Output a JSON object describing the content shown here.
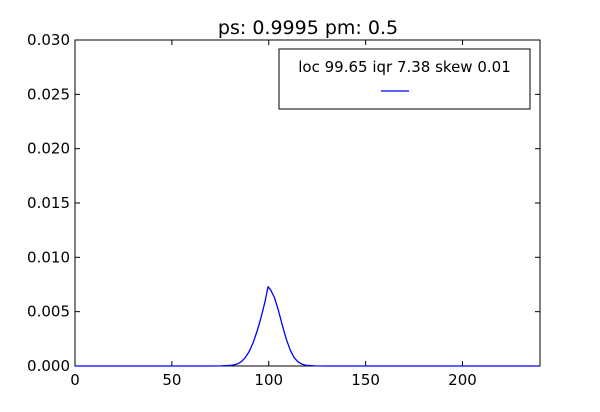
{
  "chart_data": {
    "type": "line",
    "title": "ps: 0.9995 pm: 0.5",
    "xlabel": "",
    "ylabel": "",
    "xlim": [
      0,
      240
    ],
    "ylim": [
      0,
      0.03
    ],
    "x_ticks": [
      0,
      50,
      100,
      150,
      200
    ],
    "x_tick_labels": [
      "0",
      "50",
      "100",
      "150",
      "200"
    ],
    "y_ticks": [
      0,
      0.005,
      0.01,
      0.015,
      0.02,
      0.025,
      0.03
    ],
    "y_tick_labels": [
      "0.000",
      "0.005",
      "0.010",
      "0.015",
      "0.020",
      "0.025",
      "0.030"
    ],
    "grid": false,
    "legend_position": "top-right",
    "series": [
      {
        "name": "loc 99.65 iqr 7.38 skew 0.01",
        "color": "#0000ff",
        "x": [
          0,
          70,
          75,
          80,
          82,
          84,
          86,
          88,
          90,
          92,
          94,
          96,
          98,
          99.65,
          101,
          103,
          105,
          107,
          109,
          111,
          113,
          115,
          117,
          119,
          124,
          130,
          240
        ],
        "y": [
          0,
          0,
          1e-05,
          5e-05,
          0.0001,
          0.0002,
          0.00042,
          0.0008,
          0.00137,
          0.00217,
          0.00322,
          0.00445,
          0.00587,
          0.0073,
          0.007,
          0.00627,
          0.0051,
          0.00375,
          0.0025,
          0.0015,
          0.0008,
          0.0004,
          0.00018,
          7e-05,
          1e-05,
          0,
          0
        ]
      }
    ]
  }
}
